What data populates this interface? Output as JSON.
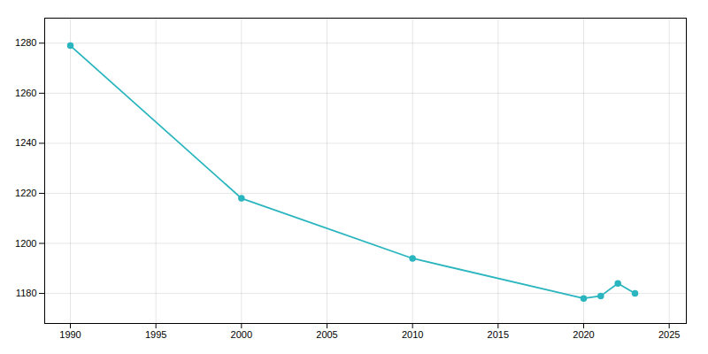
{
  "chart_data": {
    "type": "line",
    "x": [
      1990,
      2000,
      2010,
      2020,
      2021,
      2022,
      2023
    ],
    "values": [
      1279,
      1218,
      1194,
      1178,
      1179,
      1184,
      1180
    ],
    "color": "#2ab5bf",
    "marker": "circle",
    "xlim": [
      1988.5,
      2026
    ],
    "ylim": [
      1168,
      1290
    ],
    "xticks": [
      1990,
      1995,
      2000,
      2005,
      2010,
      2015,
      2020,
      2025
    ],
    "yticks": [
      1180,
      1200,
      1220,
      1240,
      1260,
      1280
    ],
    "grid": true
  }
}
